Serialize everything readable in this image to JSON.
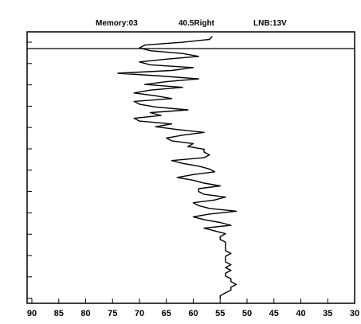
{
  "header": {
    "memory": "Memory:03",
    "position": "40.5Right",
    "lnb": "LNB:13V"
  },
  "colors": {
    "line": "#000000",
    "background": "#ffffff",
    "frame": "#000000"
  },
  "chart_data": {
    "type": "line",
    "title": "",
    "xlabel": "",
    "ylabel": "",
    "x_reversed": true,
    "xlim": [
      90,
      30
    ],
    "x_ticks": [
      90,
      85,
      80,
      75,
      70,
      65,
      60,
      55,
      50,
      45,
      40,
      35,
      30
    ],
    "y_minor_tick_count": 13,
    "grid": false,
    "reference_line": "horizontal line near top of plot",
    "series": [
      {
        "values": [
          56.5,
          57,
          62,
          69,
          70,
          68,
          62,
          59,
          65,
          70,
          68,
          60,
          64,
          74,
          66,
          59,
          65,
          69,
          62,
          68,
          71,
          67,
          64,
          71,
          70,
          67,
          61,
          68,
          66,
          71,
          70,
          64,
          67,
          63,
          58,
          62,
          65,
          64,
          60,
          61,
          58,
          58,
          57,
          58,
          64,
          62,
          59,
          57,
          56,
          60,
          63,
          60,
          58,
          55,
          59,
          59,
          58,
          54,
          56,
          60,
          59,
          57,
          52,
          57,
          60,
          58,
          55,
          53,
          58,
          56,
          54,
          55,
          55,
          54,
          54,
          54,
          54,
          53,
          54,
          54,
          54,
          53,
          54,
          53,
          54,
          54,
          53,
          53,
          52,
          53,
          53,
          54,
          55,
          55
        ]
      }
    ]
  }
}
